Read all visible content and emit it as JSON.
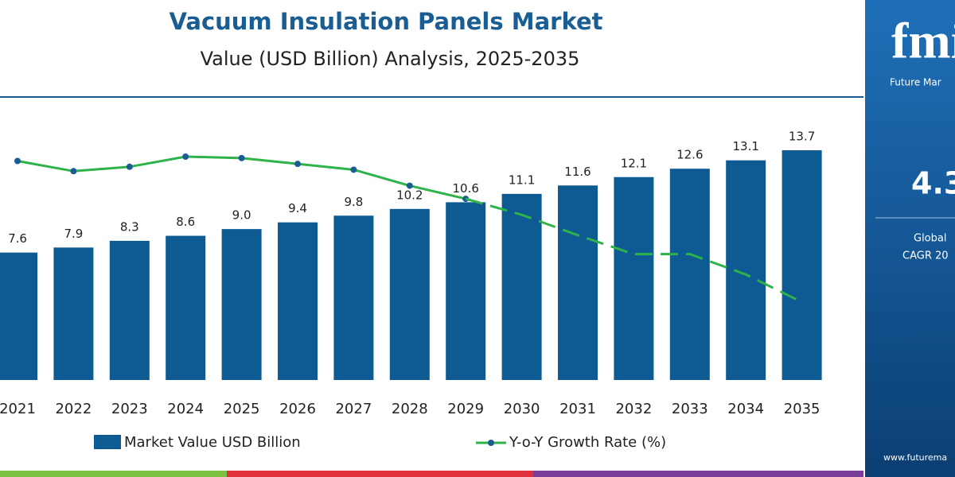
{
  "chart_data": {
    "type": "bar",
    "title": "Vacuum Insulation Panels Market",
    "subtitle": "Value (USD Billion) Analysis, 2025-2035",
    "categories": [
      "2021",
      "2022",
      "2023",
      "2024",
      "2025",
      "2026",
      "2027",
      "2028",
      "2029",
      "2030",
      "2031",
      "2032",
      "2033",
      "2034",
      "2035"
    ],
    "series": [
      {
        "name": "Market Value USD Billion",
        "type": "bar",
        "color": "#0e5a93",
        "values": [
          7.6,
          7.9,
          8.3,
          8.6,
          9.0,
          9.4,
          9.8,
          10.2,
          10.6,
          11.1,
          11.6,
          12.1,
          12.6,
          13.1,
          13.7
        ],
        "value_labels": [
          "7.6",
          "7.9",
          "8.3",
          "8.6",
          "9.0",
          "9.4",
          "9.8",
          "10.2",
          "10.6",
          "11.1",
          "11.6",
          "12.1",
          "12.6",
          "13.1",
          "13.7"
        ]
      },
      {
        "name": "Y-o-Y Growth Rate (%)",
        "type": "line",
        "color": "#2db34a",
        "values": [
          4.57,
          4.5,
          4.53,
          4.6,
          4.59,
          4.55,
          4.51,
          4.4,
          4.31,
          4.2,
          4.06,
          3.93,
          3.93,
          3.79,
          3.6
        ]
      }
    ],
    "grid": false
  },
  "side_panel": {
    "logo": "fmi",
    "brand": "Future Mar",
    "cagr": "4.3",
    "cagr_label_1": "Global",
    "cagr_label_2": "CAGR 20",
    "website": "www.futurema"
  }
}
